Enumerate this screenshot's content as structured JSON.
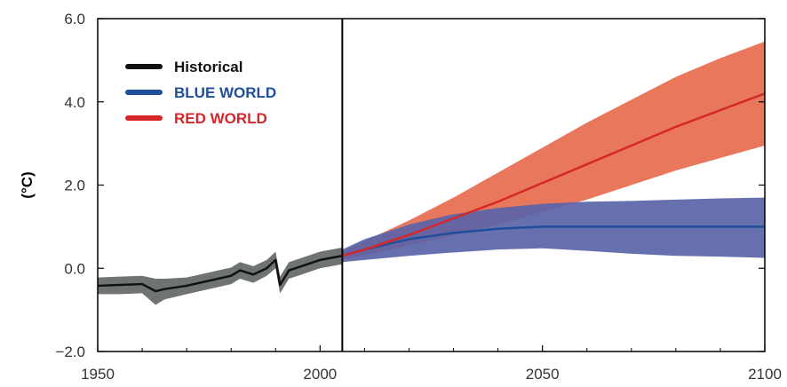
{
  "chart_data": {
    "type": "line",
    "title": "",
    "xlabel": "",
    "ylabel": "(°C)",
    "xlim": [
      1950,
      2100
    ],
    "ylim": [
      -2.0,
      6.0
    ],
    "xticks": [
      1950,
      2000,
      2050,
      2100
    ],
    "yticks": [
      -2.0,
      0.0,
      2.0,
      4.0,
      6.0
    ],
    "ytick_labels": [
      "−2.0",
      "0.0",
      "2.0",
      "4.0",
      "6.0"
    ],
    "xtick_labels": [
      "1950",
      "2000",
      "2050",
      "2100"
    ],
    "divider_x": 2005,
    "grid": false,
    "legend_position": "top-left",
    "series": [
      {
        "name": "Historical",
        "color": "#111111",
        "band_color": "#6f7470",
        "x": [
          1950,
          1955,
          1960,
          1963,
          1965,
          1970,
          1975,
          1980,
          1982,
          1985,
          1988,
          1990,
          1991,
          1993,
          1995,
          2000,
          2005
        ],
        "values": [
          -0.42,
          -0.4,
          -0.38,
          -0.55,
          -0.5,
          -0.42,
          -0.3,
          -0.18,
          -0.05,
          -0.15,
          0.0,
          0.2,
          -0.4,
          -0.05,
          0.02,
          0.2,
          0.3
        ],
        "lower": [
          -0.62,
          -0.62,
          -0.6,
          -0.88,
          -0.75,
          -0.62,
          -0.5,
          -0.38,
          -0.25,
          -0.35,
          -0.18,
          0.0,
          -0.6,
          -0.25,
          -0.18,
          0.0,
          0.1
        ],
        "upper": [
          -0.22,
          -0.2,
          -0.18,
          -0.25,
          -0.25,
          -0.22,
          -0.1,
          0.02,
          0.15,
          0.05,
          0.2,
          0.4,
          -0.2,
          0.15,
          0.22,
          0.4,
          0.5
        ]
      },
      {
        "name": "BLUE WORLD",
        "color": "#1f4e9c",
        "band_color": "#5a64a8",
        "x": [
          2005,
          2010,
          2020,
          2030,
          2040,
          2050,
          2060,
          2070,
          2080,
          2090,
          2100
        ],
        "values": [
          0.3,
          0.45,
          0.7,
          0.85,
          0.95,
          1.0,
          1.0,
          1.0,
          1.0,
          1.0,
          1.0
        ],
        "lower": [
          0.15,
          0.2,
          0.3,
          0.38,
          0.45,
          0.48,
          0.42,
          0.35,
          0.3,
          0.28,
          0.25
        ],
        "upper": [
          0.45,
          0.7,
          1.05,
          1.3,
          1.45,
          1.55,
          1.6,
          1.62,
          1.65,
          1.68,
          1.7
        ]
      },
      {
        "name": "RED WORLD",
        "color": "#d62728",
        "band_color": "#e8775c",
        "x": [
          2005,
          2010,
          2020,
          2030,
          2040,
          2050,
          2060,
          2070,
          2080,
          2090,
          2100
        ],
        "values": [
          0.3,
          0.45,
          0.8,
          1.2,
          1.6,
          2.05,
          2.5,
          2.95,
          3.4,
          3.8,
          4.2
        ],
        "lower": [
          0.2,
          0.3,
          0.55,
          0.8,
          1.05,
          1.35,
          1.65,
          2.0,
          2.35,
          2.65,
          2.95
        ],
        "upper": [
          0.4,
          0.65,
          1.15,
          1.7,
          2.3,
          2.9,
          3.5,
          4.05,
          4.6,
          5.05,
          5.45
        ]
      }
    ]
  }
}
